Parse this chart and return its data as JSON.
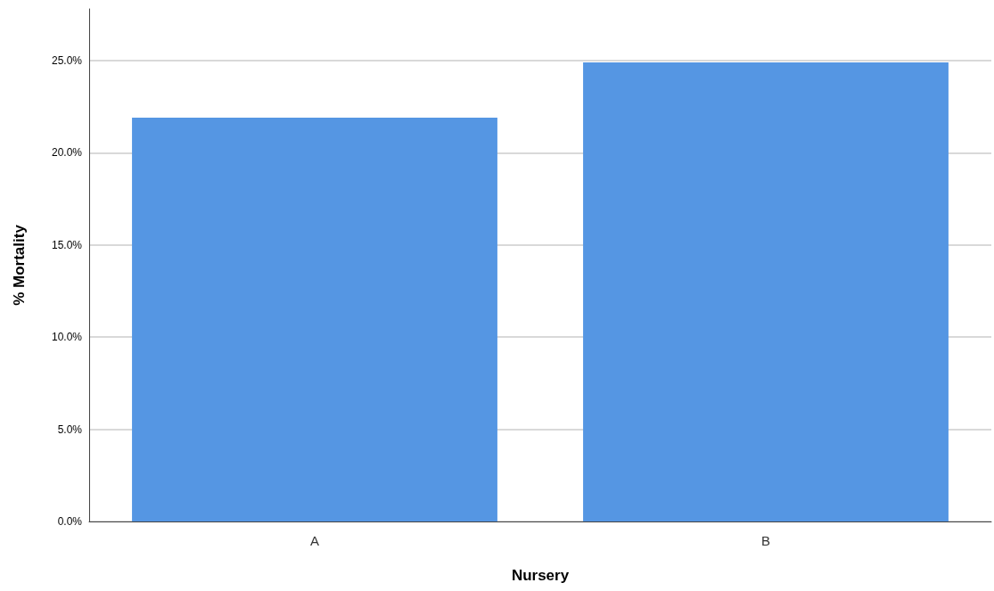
{
  "chart_data": {
    "type": "bar",
    "xlabel": "Nursery",
    "ylabel": "% Mortality",
    "categories": [
      "A",
      "B"
    ],
    "values": [
      21.9,
      24.9
    ],
    "color": "#5596e3",
    "ylim": [
      0,
      27.8
    ],
    "yticks": [
      {
        "value": 0,
        "label": "0.0%"
      },
      {
        "value": 5,
        "label": "5.0%"
      },
      {
        "value": 10,
        "label": "10.0%"
      },
      {
        "value": 15,
        "label": "15.0%"
      },
      {
        "value": 20,
        "label": "20.0%"
      },
      {
        "value": 25,
        "label": "25.0%"
      }
    ],
    "grid": "y"
  }
}
